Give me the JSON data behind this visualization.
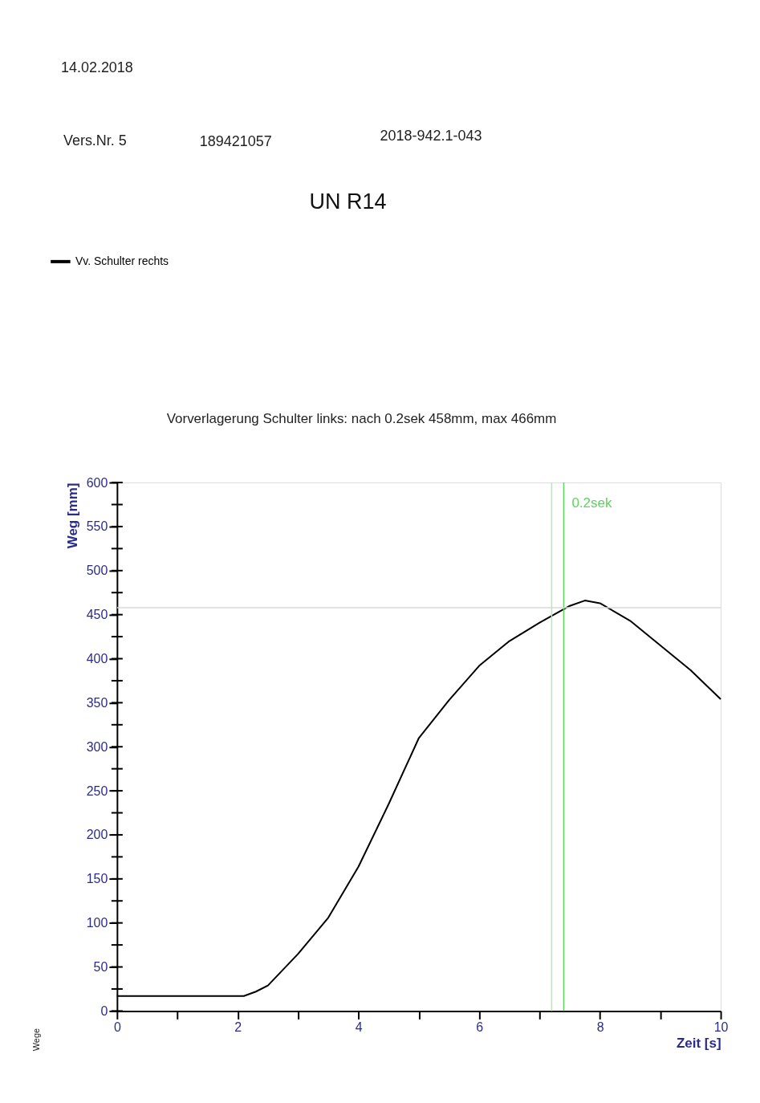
{
  "chart_data": {
    "type": "line",
    "title": "Vorverlagerung Schulter links: nach 0.2sek 458mm, max 466mm",
    "subtitle": "UN R14",
    "xlabel": "Zeit [s]",
    "ylabel": "Weg [mm]",
    "annotations": [
      "14.02.2018",
      "Vers.Nr. 5",
      "189421057",
      "2018-942.1-043",
      "Wege"
    ],
    "series": [
      {
        "name": "Vv. Schulter rechts",
        "color": "#000000",
        "x": [
          0,
          1,
          2,
          2.1,
          2.3,
          2.5,
          3,
          3.5,
          4,
          4.5,
          5,
          5.5,
          6,
          6.5,
          7,
          7.5,
          7.75,
          8,
          8.5,
          9,
          9.5,
          10
        ],
        "values": [
          17,
          17,
          17,
          17,
          22,
          29,
          65,
          106,
          164,
          235,
          310,
          353,
          392,
          420,
          441,
          460,
          466,
          463,
          443,
          415,
          387,
          354
        ]
      }
    ],
    "xlim": [
      0,
      10
    ],
    "ylim": [
      0,
      600
    ],
    "xticks": [
      0,
      {
        "value": 1,
        "label": null
      },
      2,
      {
        "value": 3,
        "label": null
      },
      4,
      {
        "value": 5,
        "label": null
      },
      6,
      {
        "value": 7,
        "label": null
      },
      8,
      {
        "value": 9,
        "label": null
      },
      10
    ],
    "yticks": [
      0,
      {
        "value": 25,
        "label": null
      },
      50,
      {
        "value": 75,
        "label": null
      },
      100,
      {
        "value": 125,
        "label": null
      },
      150,
      {
        "value": 175,
        "label": null
      },
      200,
      {
        "value": 225,
        "label": null
      },
      250,
      {
        "value": 275,
        "label": null
      },
      300,
      {
        "value": 325,
        "label": null
      },
      350,
      {
        "value": 375,
        "label": null
      },
      400,
      {
        "value": 425,
        "label": null
      },
      450,
      {
        "value": 475,
        "label": null
      },
      500,
      {
        "value": 525,
        "label": null
      },
      550,
      {
        "value": 575,
        "label": null
      },
      600
    ],
    "ref_lines": [
      {
        "axis": "x",
        "value": 7.2,
        "color": "#b8e6b8"
      },
      {
        "axis": "x",
        "value": 7.4,
        "label": "0.2sek",
        "color": "#5fd35f"
      },
      {
        "axis": "y",
        "value": 458,
        "color": "#d9d9d9"
      }
    ],
    "grid": false,
    "legend": "top left",
    "marker": "none",
    "line_style": "solid"
  }
}
